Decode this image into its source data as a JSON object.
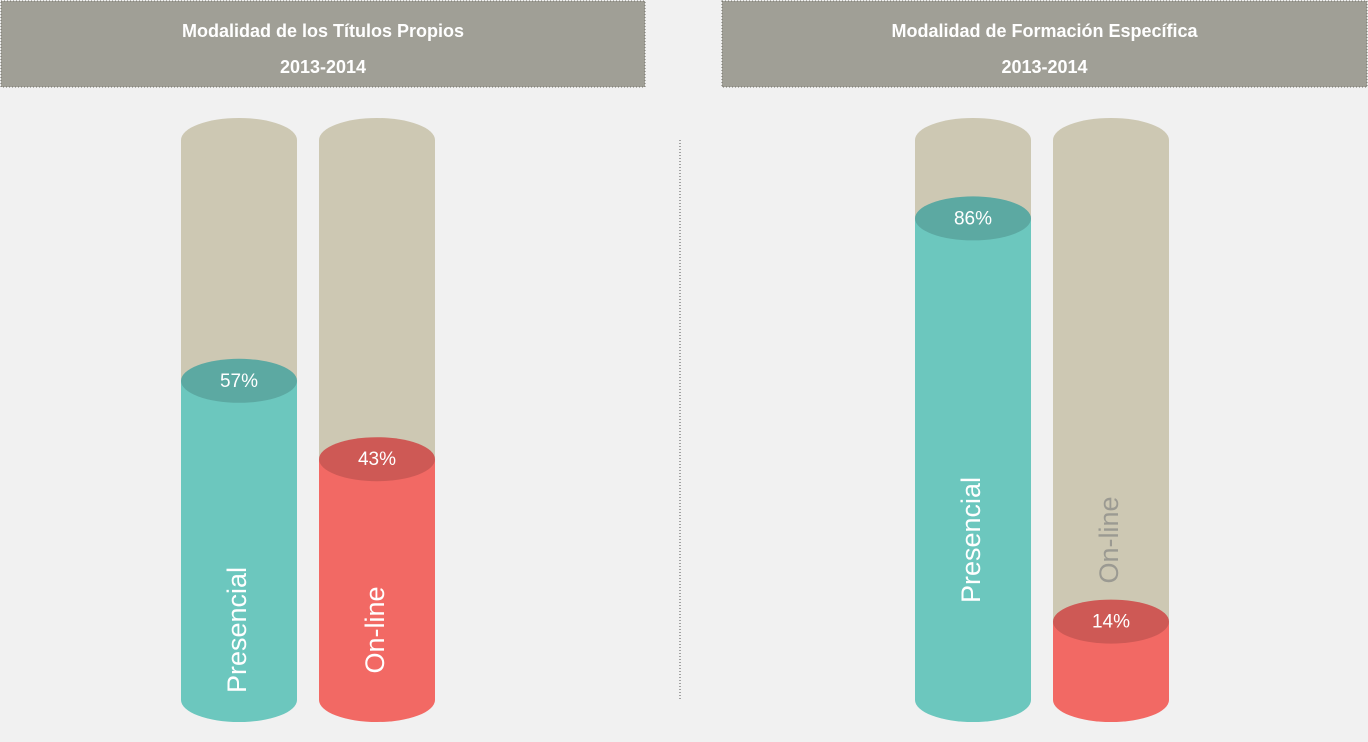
{
  "chart_data": [
    {
      "type": "bar",
      "title": "Modalidad de los Títulos Propios",
      "subtitle": "2013-2014",
      "categories": [
        "Presencial",
        "On-line"
      ],
      "values": [
        57,
        43
      ],
      "value_labels": [
        "57%",
        "43%"
      ],
      "colors": [
        "#6cc7be",
        "#f26964"
      ],
      "ylim": [
        0,
        100
      ]
    },
    {
      "type": "bar",
      "title": "Modalidad de Formación Específica",
      "subtitle": "2013-2014",
      "categories": [
        "Presencial",
        "On-line"
      ],
      "values": [
        86,
        14
      ],
      "value_labels": [
        "86%",
        "14%"
      ],
      "colors": [
        "#6cc7be",
        "#f26964"
      ],
      "ylim": [
        0,
        100
      ]
    }
  ]
}
